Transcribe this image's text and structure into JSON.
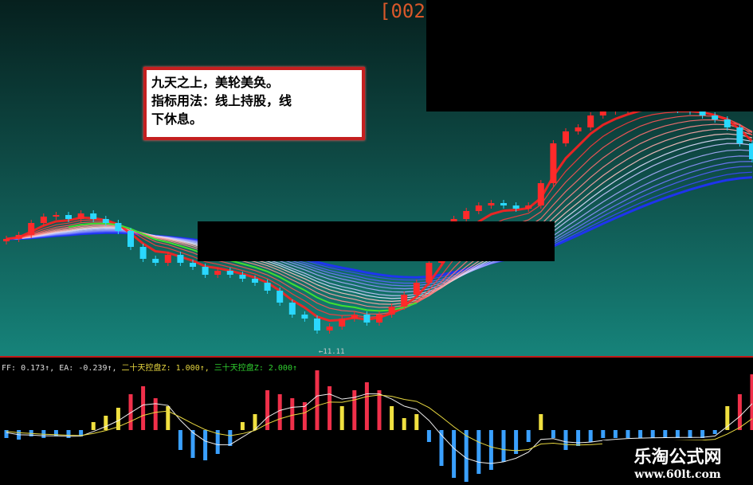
{
  "header": {
    "title": "[002"
  },
  "note": {
    "line1": "九天之上，美轮美奂。",
    "line2": "指标用法：线上持股，线",
    "line3": "下休息。"
  },
  "marker": "←11.11",
  "legend": {
    "ff": "FF: 0.173↑,",
    "ea": "EA: -0.239↑,",
    "z20": "二十天控盘Z: 1.000↑,",
    "z30": "三十天控盘Z: 2.000↑",
    "colors": {
      "ff": "#dddddd",
      "ea": "#dddddd",
      "z20": "#e8d840",
      "z30": "#30d030"
    }
  },
  "watermark": {
    "name": "乐淘公式网",
    "url": "www.60lt.com"
  },
  "chart_data": [
    {
      "type": "line",
      "title": "",
      "closes": [
        150,
        155,
        170,
        178,
        180,
        175,
        182,
        175,
        170,
        160,
        140,
        125,
        120,
        130,
        120,
        115,
        105,
        110,
        105,
        100,
        95,
        85,
        70,
        55,
        50,
        35,
        40,
        50,
        55,
        45,
        55,
        65,
        80,
        95,
        120,
        150,
        175,
        185,
        192,
        195,
        192,
        188,
        192,
        220,
        270,
        285,
        290,
        305,
        310,
        312,
        315,
        318,
        316,
        314,
        312,
        310,
        305,
        300,
        290,
        270,
        250
      ],
      "colors": {
        "up": "#ff2a2a",
        "down": "#2ad8ff",
        "ribbon_short": "#ff2020",
        "ribbon_long": "#2030ff",
        "ma_green": "#40e030"
      }
    },
    {
      "type": "bar",
      "title": "",
      "values": [
        -10,
        -12,
        -8,
        -10,
        -8,
        -10,
        -8,
        10,
        18,
        28,
        45,
        55,
        40,
        30,
        -25,
        -35,
        -38,
        -30,
        -20,
        10,
        20,
        50,
        45,
        40,
        35,
        75,
        55,
        30,
        50,
        60,
        50,
        30,
        15,
        20,
        -15,
        -45,
        -60,
        -65,
        -55,
        -50,
        -40,
        -30,
        -15,
        20,
        -10,
        -25,
        -20,
        -15,
        -10,
        -10,
        -10,
        -10,
        -10,
        -10,
        -10,
        -10,
        -10,
        -5,
        30,
        45,
        70
      ],
      "colors": {
        "positive": "#f0304a",
        "negative": "#3aa0ff",
        "weak": "#f0e040"
      }
    }
  ]
}
